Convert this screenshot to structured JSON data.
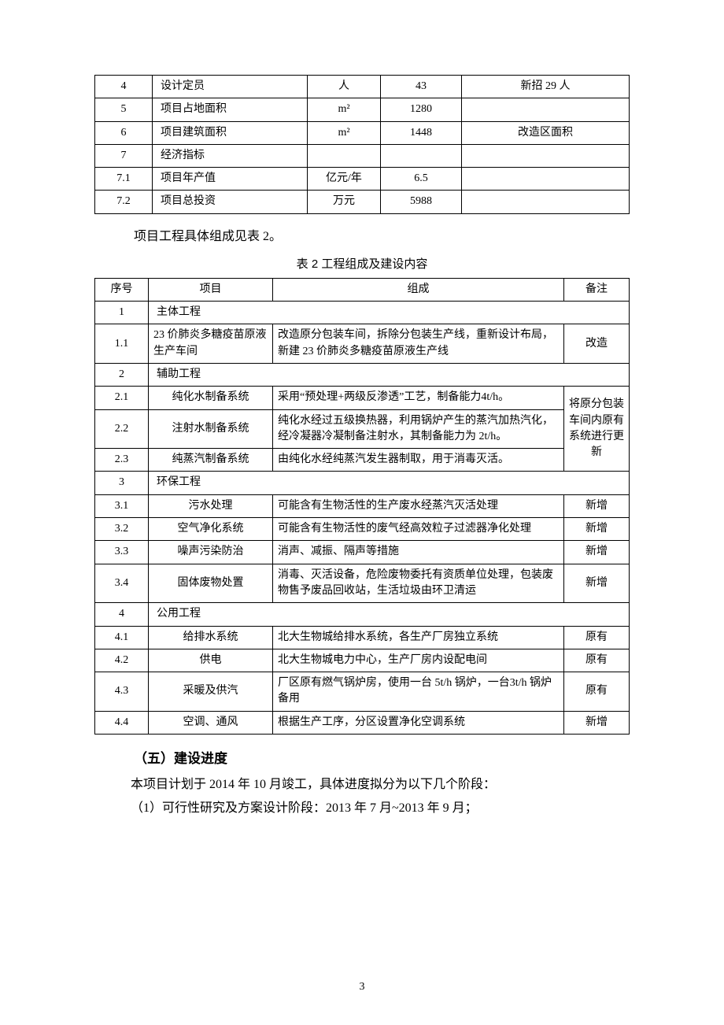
{
  "table1": {
    "rows": [
      {
        "n": "4",
        "item": "设计定员",
        "unit": "人",
        "val": "43",
        "note": "新招 29 人"
      },
      {
        "n": "5",
        "item": "项目占地面积",
        "unit": "m²",
        "val": "1280",
        "note": ""
      },
      {
        "n": "6",
        "item": "项目建筑面积",
        "unit": "m²",
        "val": "1448",
        "note": "改造区面积"
      },
      {
        "n": "7",
        "item": "经济指标",
        "unit": "",
        "val": "",
        "note": ""
      },
      {
        "n": "7.1",
        "item": "项目年产值",
        "unit": "亿元/年",
        "val": "6.5",
        "note": ""
      },
      {
        "n": "7.2",
        "item": "项目总投资",
        "unit": "万元",
        "val": "5988",
        "note": ""
      }
    ]
  },
  "caption_line": "项目工程具体组成见表 2。",
  "table2_title": "表 2   工程组成及建设内容",
  "table2": {
    "head": {
      "n": "序号",
      "proj": "项目",
      "comp": "组成",
      "note": "备注"
    },
    "sec1": {
      "n": "1",
      "title": "主体工程",
      "rows": [
        {
          "n": "1.1",
          "proj": "23 价肺炎多糖疫苗原液生产车间",
          "comp": "改造原分包装车间，拆除分包装生产线，重新设计布局，新建 23 价肺炎多糖疫苗原液生产线",
          "note": "改造"
        }
      ]
    },
    "sec2": {
      "n": "2",
      "title": "辅助工程",
      "merged_note": "将原分包装车间内原有系统进行更新",
      "rows": [
        {
          "n": "2.1",
          "proj": "纯化水制备系统",
          "comp": "采用“预处理+两级反渗透”工艺，制备能力4t/h。"
        },
        {
          "n": "2.2",
          "proj": "注射水制备系统",
          "comp": "纯化水经过五级换热器，利用锅炉产生的蒸汽加热汽化，经冷凝器冷凝制备注射水，其制备能力为 2t/h。"
        },
        {
          "n": "2.3",
          "proj": "纯蒸汽制备系统",
          "comp": "由纯化水经纯蒸汽发生器制取，用于消毒灭活。"
        }
      ]
    },
    "sec3": {
      "n": "3",
      "title": "环保工程",
      "rows": [
        {
          "n": "3.1",
          "proj": "污水处理",
          "comp": "可能含有生物活性的生产废水经蒸汽灭活处理",
          "note": "新增"
        },
        {
          "n": "3.2",
          "proj": "空气净化系统",
          "comp": "可能含有生物活性的废气经高效粒子过滤器净化处理",
          "note": "新增"
        },
        {
          "n": "3.3",
          "proj": "噪声污染防治",
          "comp": "消声、减振、隔声等措施",
          "note": "新增"
        },
        {
          "n": "3.4",
          "proj": "固体废物处置",
          "comp": "消毒、灭活设备，危险废物委托有资质单位处理，包装废物售予废品回收站，生活垃圾由环卫清运",
          "note": "新增"
        }
      ]
    },
    "sec4": {
      "n": "4",
      "title": "公用工程",
      "rows": [
        {
          "n": "4.1",
          "proj": "给排水系统",
          "comp": "北大生物城给排水系统，各生产厂房独立系统",
          "note": "原有"
        },
        {
          "n": "4.2",
          "proj": "供电",
          "comp": "北大生物城电力中心，生产厂房内设配电间",
          "note": "原有"
        },
        {
          "n": "4.3",
          "proj": "采暖及供汽",
          "comp": "厂区原有燃气锅炉房，使用一台 5t/h 锅炉，一台3t/h 锅炉备用",
          "note": "原有"
        },
        {
          "n": "4.4",
          "proj": "空调、通风",
          "comp": "根据生产工序，分区设置净化空调系统",
          "note": "新增"
        }
      ]
    }
  },
  "heading_five": "（五）建设进度",
  "para1": "本项目计划于 2014 年 10 月竣工，具体进度拟分为以下几个阶段：",
  "para2": "（1）可行性研究及方案设计阶段：2013 年 7 月~2013 年 9 月；",
  "page_num": "3"
}
